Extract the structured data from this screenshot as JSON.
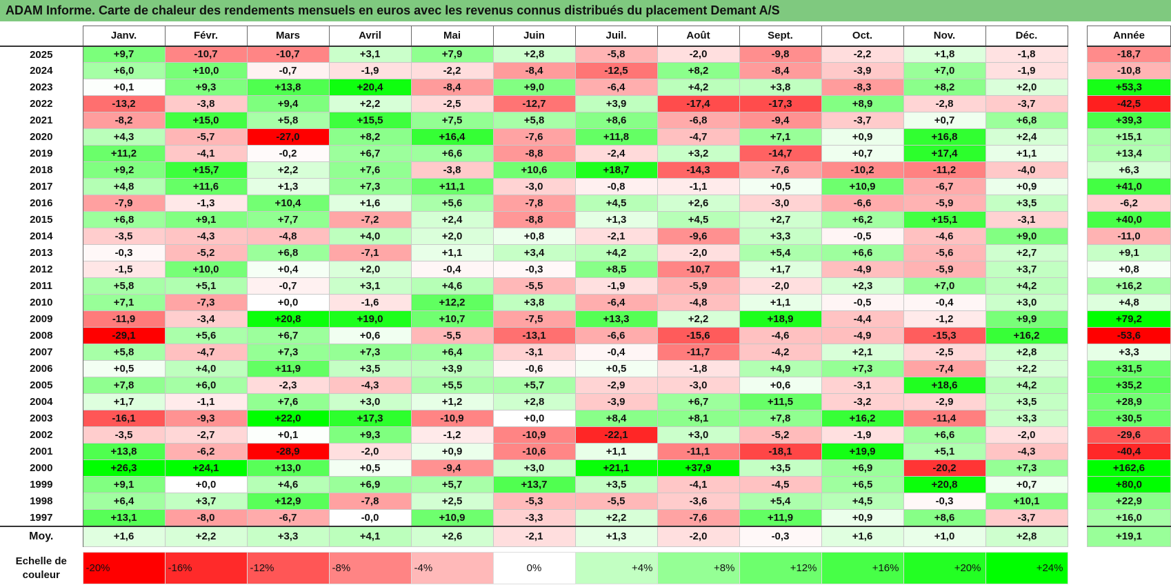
{
  "title": "ADAM Informe. Carte de chaleur des rendements mensuels en euros avec les revenus connus distribués du placement Demant A/S",
  "chart_data": {
    "type": "heatmap",
    "months": [
      "Janv.",
      "Févr.",
      "Mars",
      "Avril",
      "Mai",
      "Juin",
      "Juil.",
      "Août",
      "Sept.",
      "Oct.",
      "Nov.",
      "Déc."
    ],
    "annual_label": "Année",
    "rows": [
      {
        "year": "2025",
        "values": [
          "+9,7",
          "-10,7",
          "-10,7",
          "+3,1",
          "+7,9",
          "+2,8",
          "-5,8",
          "-2,0",
          "-9,8",
          "-2,2",
          "+1,8",
          "-1,8"
        ],
        "annual": "-18,7"
      },
      {
        "year": "2024",
        "values": [
          "+6,0",
          "+10,0",
          "-0,7",
          "-1,9",
          "-2,2",
          "-8,4",
          "-12,5",
          "+8,2",
          "-8,4",
          "-3,9",
          "+7,0",
          "-1,9"
        ],
        "annual": "-10,8"
      },
      {
        "year": "2023",
        "values": [
          "+0,1",
          "+9,3",
          "+13,8",
          "+20,4",
          "-8,4",
          "+9,0",
          "-6,4",
          "+4,2",
          "+3,8",
          "-8,3",
          "+8,2",
          "+2,0"
        ],
        "annual": "+53,3"
      },
      {
        "year": "2022",
        "values": [
          "-13,2",
          "-3,8",
          "+9,4",
          "+2,2",
          "-2,5",
          "-12,7",
          "+3,9",
          "-17,4",
          "-17,3",
          "+8,9",
          "-2,8",
          "-3,7"
        ],
        "annual": "-42,5"
      },
      {
        "year": "2021",
        "values": [
          "-8,2",
          "+15,0",
          "+5,8",
          "+15,5",
          "+7,5",
          "+5,8",
          "+8,6",
          "-6,8",
          "-9,4",
          "-3,7",
          "+0,7",
          "+6,8"
        ],
        "annual": "+39,3"
      },
      {
        "year": "2020",
        "values": [
          "+4,3",
          "-5,7",
          "-27,0",
          "+8,2",
          "+16,4",
          "-7,6",
          "+11,8",
          "-4,7",
          "+7,1",
          "+0,9",
          "+16,8",
          "+2,4"
        ],
        "annual": "+15,1"
      },
      {
        "year": "2019",
        "values": [
          "+11,2",
          "-4,1",
          "-0,2",
          "+6,7",
          "+6,6",
          "-8,8",
          "-2,4",
          "+3,2",
          "-14,7",
          "+0,7",
          "+17,4",
          "+1,1"
        ],
        "annual": "+13,4"
      },
      {
        "year": "2018",
        "values": [
          "+9,2",
          "+15,7",
          "+2,2",
          "+7,6",
          "-3,8",
          "+10,6",
          "+18,7",
          "-14,3",
          "-7,6",
          "-10,2",
          "-11,2",
          "-4,0"
        ],
        "annual": "+6,3"
      },
      {
        "year": "2017",
        "values": [
          "+4,8",
          "+11,6",
          "+1,3",
          "+7,3",
          "+11,1",
          "-3,0",
          "-0,8",
          "-1,1",
          "+0,5",
          "+10,9",
          "-6,7",
          "+0,9"
        ],
        "annual": "+41,0"
      },
      {
        "year": "2016",
        "values": [
          "-7,9",
          "-1,3",
          "+10,4",
          "+1,6",
          "+5,6",
          "-7,8",
          "+4,5",
          "+2,6",
          "-3,0",
          "-6,6",
          "-5,9",
          "+3,5"
        ],
        "annual": "-6,2"
      },
      {
        "year": "2015",
        "values": [
          "+6,8",
          "+9,1",
          "+7,7",
          "-7,2",
          "+2,4",
          "-8,8",
          "+1,3",
          "+4,5",
          "+2,7",
          "+6,2",
          "+15,1",
          "-3,1"
        ],
        "annual": "+40,0"
      },
      {
        "year": "2014",
        "values": [
          "-3,5",
          "-4,3",
          "-4,8",
          "+4,0",
          "+2,0",
          "+0,8",
          "-2,1",
          "-9,6",
          "+3,3",
          "-0,5",
          "-4,6",
          "+9,0"
        ],
        "annual": "-11,0"
      },
      {
        "year": "2013",
        "values": [
          "-0,3",
          "-5,2",
          "+6,8",
          "-7,1",
          "+1,1",
          "+3,4",
          "+4,2",
          "-2,0",
          "+5,4",
          "+6,6",
          "-5,6",
          "+2,7"
        ],
        "annual": "+9,1"
      },
      {
        "year": "2012",
        "values": [
          "-1,5",
          "+10,0",
          "+0,4",
          "+2,0",
          "-0,4",
          "-0,3",
          "+8,5",
          "-10,7",
          "+1,7",
          "-4,9",
          "-5,9",
          "+3,7"
        ],
        "annual": "+0,8"
      },
      {
        "year": "2011",
        "values": [
          "+5,8",
          "+5,1",
          "-0,7",
          "+3,1",
          "+4,6",
          "-5,5",
          "-1,9",
          "-5,9",
          "-2,0",
          "+2,3",
          "+7,0",
          "+4,2"
        ],
        "annual": "+16,2"
      },
      {
        "year": "2010",
        "values": [
          "+7,1",
          "-7,3",
          "+0,0",
          "-1,6",
          "+12,2",
          "+3,8",
          "-6,4",
          "-4,8",
          "+1,1",
          "-0,5",
          "-0,4",
          "+3,0"
        ],
        "annual": "+4,8"
      },
      {
        "year": "2009",
        "values": [
          "-11,9",
          "-3,4",
          "+20,8",
          "+19,0",
          "+10,7",
          "-7,5",
          "+13,3",
          "+2,2",
          "+18,9",
          "-4,4",
          "-1,2",
          "+9,9"
        ],
        "annual": "+79,2"
      },
      {
        "year": "2008",
        "values": [
          "-29,1",
          "+5,6",
          "+6,7",
          "+0,6",
          "-5,5",
          "-13,1",
          "-6,6",
          "-15,6",
          "-4,6",
          "-4,9",
          "-15,3",
          "+16,2"
        ],
        "annual": "-53,6"
      },
      {
        "year": "2007",
        "values": [
          "+5,8",
          "-4,7",
          "+7,3",
          "+7,3",
          "+6,4",
          "-3,1",
          "-0,4",
          "-11,7",
          "-4,2",
          "+2,1",
          "-2,5",
          "+2,8"
        ],
        "annual": "+3,3"
      },
      {
        "year": "2006",
        "values": [
          "+0,5",
          "+4,0",
          "+11,9",
          "+3,5",
          "+3,9",
          "-0,6",
          "+0,5",
          "-1,8",
          "+4,9",
          "+7,3",
          "-7,4",
          "+2,2"
        ],
        "annual": "+31,5"
      },
      {
        "year": "2005",
        "values": [
          "+7,8",
          "+6,0",
          "-2,3",
          "-4,3",
          "+5,5",
          "+5,7",
          "-2,9",
          "-3,0",
          "+0,6",
          "-3,1",
          "+18,6",
          "+4,2"
        ],
        "annual": "+35,2"
      },
      {
        "year": "2004",
        "values": [
          "+1,7",
          "-1,1",
          "+7,6",
          "+3,0",
          "+1,2",
          "+2,8",
          "-3,9",
          "+6,7",
          "+11,5",
          "-3,2",
          "-2,9",
          "+3,5"
        ],
        "annual": "+28,9"
      },
      {
        "year": "2003",
        "values": [
          "-16,1",
          "-9,3",
          "+22,0",
          "+17,3",
          "-10,9",
          "+0,0",
          "+8,4",
          "+8,1",
          "+7,8",
          "+16,2",
          "-11,4",
          "+3,3"
        ],
        "annual": "+30,5"
      },
      {
        "year": "2002",
        "values": [
          "-3,5",
          "-2,7",
          "+0,1",
          "+9,3",
          "-1,2",
          "-10,9",
          "-22,1",
          "+3,0",
          "-5,2",
          "-1,9",
          "+6,6",
          "-2,0"
        ],
        "annual": "-29,6"
      },
      {
        "year": "2001",
        "values": [
          "+13,8",
          "-6,2",
          "-28,9",
          "-2,0",
          "+0,9",
          "-10,6",
          "+1,1",
          "-11,1",
          "-18,1",
          "+19,9",
          "+5,1",
          "-4,3"
        ],
        "annual": "-40,4"
      },
      {
        "year": "2000",
        "values": [
          "+26,3",
          "+24,1",
          "+13,0",
          "+0,5",
          "-9,4",
          "+3,0",
          "+21,1",
          "+37,9",
          "+3,5",
          "+6,9",
          "-20,2",
          "+7,3"
        ],
        "annual": "+162,6"
      },
      {
        "year": "1999",
        "values": [
          "+9,1",
          "+0,0",
          "+4,6",
          "+6,9",
          "+5,7",
          "+13,7",
          "+3,5",
          "-4,1",
          "-4,5",
          "+6,5",
          "+20,8",
          "+0,7"
        ],
        "annual": "+80,0"
      },
      {
        "year": "1998",
        "values": [
          "+6,4",
          "+3,7",
          "+12,9",
          "-7,8",
          "+2,5",
          "-5,3",
          "-5,5",
          "-3,6",
          "+5,4",
          "+4,5",
          "-0,3",
          "+10,1"
        ],
        "annual": "+22,9"
      },
      {
        "year": "1997",
        "values": [
          "+13,1",
          "-8,0",
          "-6,7",
          "-0,0",
          "+10,9",
          "-3,3",
          "+2,2",
          "-7,6",
          "+11,9",
          "+0,9",
          "+8,6",
          "-3,7"
        ],
        "annual": "+16,0"
      }
    ],
    "average": {
      "label": "Moy.",
      "values": [
        "+1,6",
        "+2,2",
        "+3,3",
        "+4,1",
        "+2,6",
        "-2,1",
        "+1,3",
        "-2,0",
        "-0,3",
        "+1,6",
        "+1,0",
        "+2,8"
      ],
      "annual": "+19,1"
    },
    "scale": {
      "label_line1": "Echelle de",
      "label_line2": "couleur",
      "steps": [
        "-20%",
        "-16%",
        "-12%",
        "-8%",
        "-4%",
        "0%",
        "+4%",
        "+8%",
        "+12%",
        "+16%",
        "+20%",
        "+24%"
      ]
    },
    "colors": {
      "negative": "#ff0000",
      "neutral": "#ffffff",
      "positive": "#00ff00",
      "title_bar": "#7fc97f"
    }
  }
}
